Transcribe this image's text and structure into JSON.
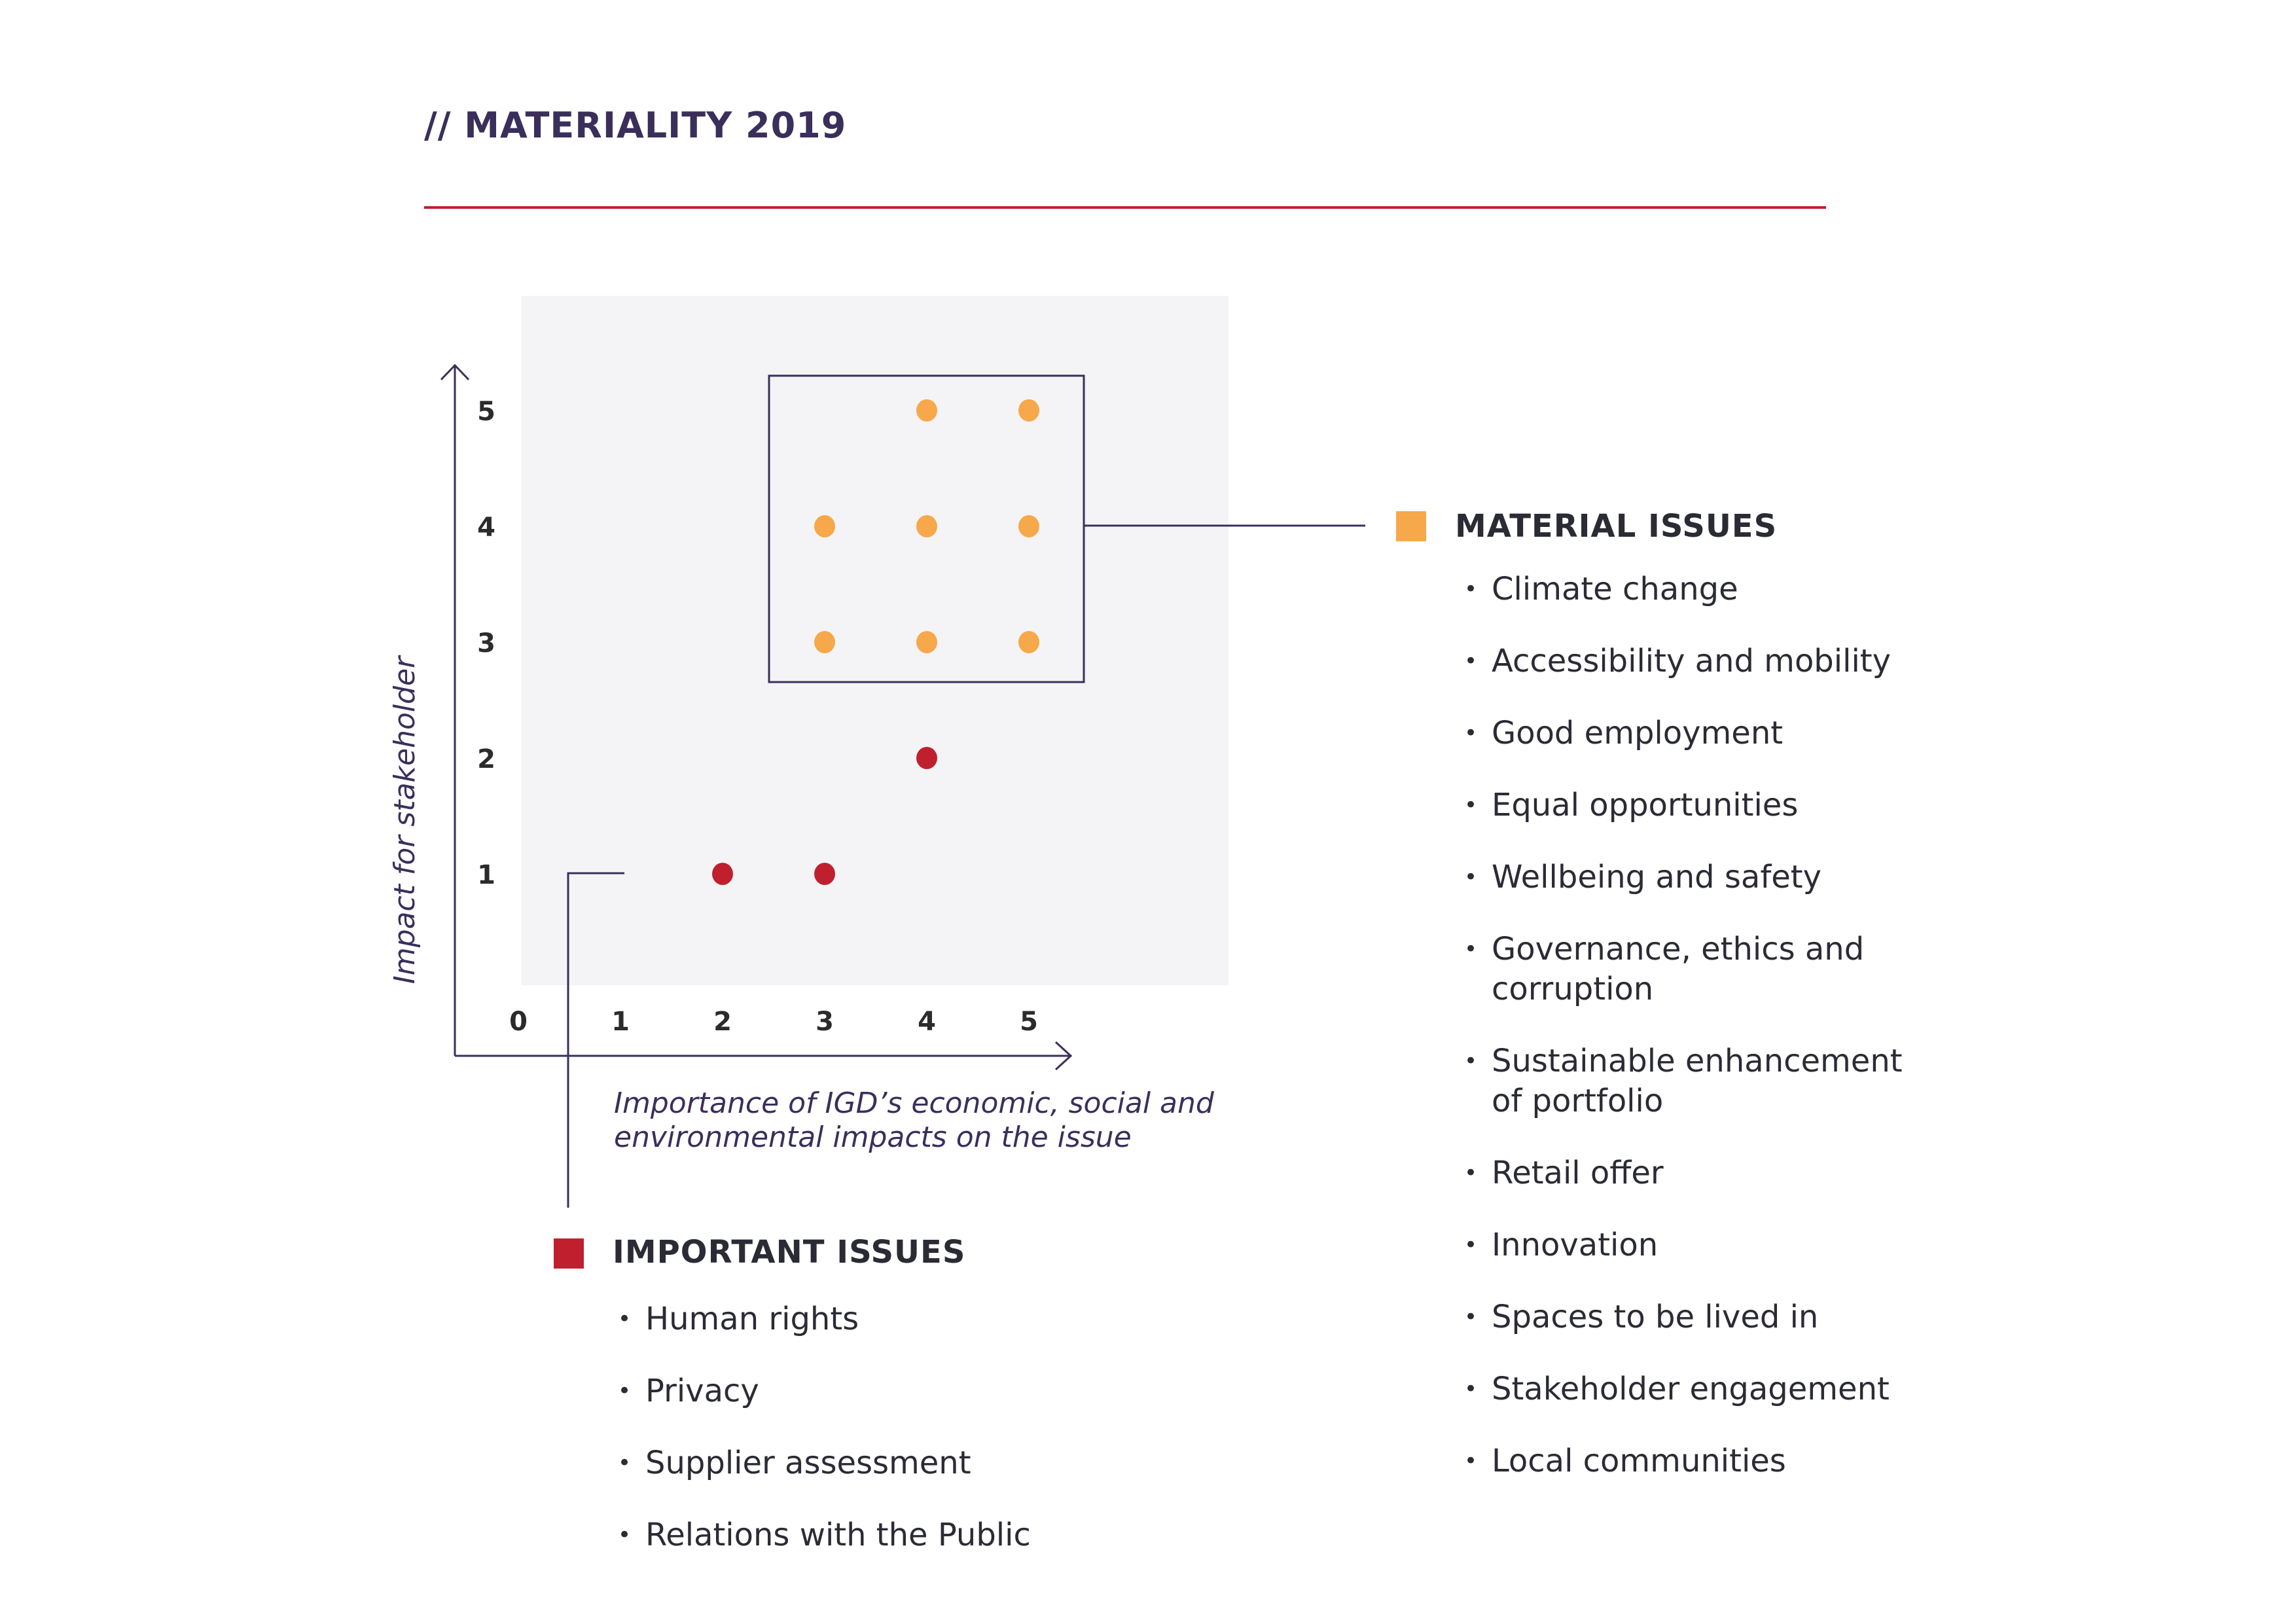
{
  "title": "// MATERIALITY 2019",
  "colors": {
    "title": "#3a2f5b",
    "rule": "#c0202e",
    "axis": "#3a2f5b",
    "material": "#f7a84a",
    "important": "#c0202e",
    "plot_bg": "#f4f4f6"
  },
  "chart_data": {
    "type": "scatter",
    "xlabel": "Importance of IGD’s economic, social and environmental impacts on the issue",
    "ylabel": "Impact for stakeholder",
    "xlim": [
      0,
      5
    ],
    "ylim": [
      0,
      5
    ],
    "x_ticks": [
      "0",
      "1",
      "2",
      "3",
      "4",
      "5"
    ],
    "y_ticks": [
      "1",
      "2",
      "3",
      "4",
      "5"
    ],
    "grid": false,
    "series": [
      {
        "name": "MATERIAL ISSUES",
        "color": "#f7a84a",
        "points": [
          [
            4,
            5
          ],
          [
            5,
            5
          ],
          [
            3,
            4
          ],
          [
            4,
            4
          ],
          [
            5,
            4
          ],
          [
            3,
            3
          ],
          [
            4,
            3
          ],
          [
            5,
            3
          ]
        ]
      },
      {
        "name": "IMPORTANT ISSUES",
        "color": "#c0202e",
        "points": [
          [
            2,
            1
          ],
          [
            3,
            1
          ],
          [
            4,
            2
          ]
        ]
      }
    ]
  },
  "legend": {
    "material": {
      "title": "MATERIAL ISSUES",
      "items": [
        "Climate change",
        "Accessibility and mobility",
        "Good employment",
        "Equal opportunities",
        "Wellbeing and safety",
        "Governance, ethics and corruption",
        "Sustainable enhancement of portfolio",
        "Retail offer",
        "Innovation",
        "Spaces to be lived in",
        "Stakeholder engagement",
        "Local communities"
      ]
    },
    "important": {
      "title": "IMPORTANT ISSUES",
      "items": [
        "Human rights",
        "Privacy",
        "Supplier assessment",
        "Relations with the Public"
      ]
    }
  }
}
